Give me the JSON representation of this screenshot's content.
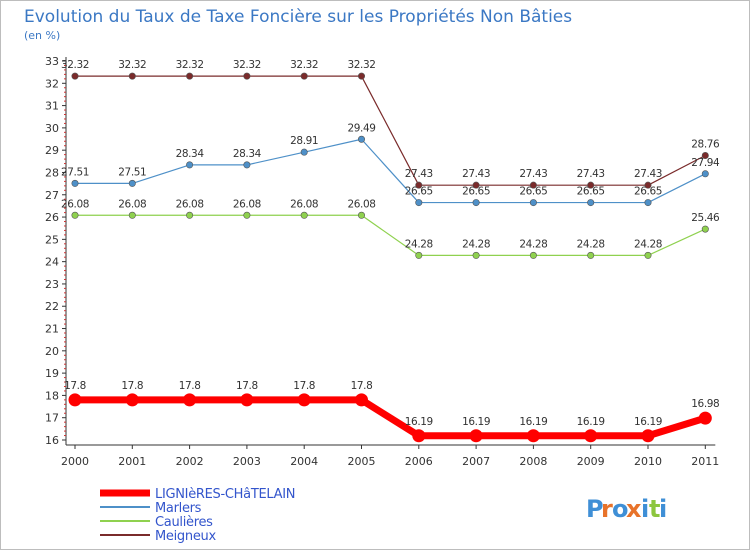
{
  "chart_data": {
    "type": "line",
    "title": "Evolution du Taux de Taxe Foncière sur les Propriétés Non Bâties",
    "subtitle": "(en %)",
    "xlabel": "",
    "ylabel": "",
    "categories": [
      "2000",
      "2001",
      "2002",
      "2003",
      "2004",
      "2005",
      "2006",
      "2007",
      "2008",
      "2009",
      "2010",
      "2011"
    ],
    "ylim": [
      16,
      33
    ],
    "yticks": [
      "16",
      "17",
      "18",
      "19",
      "20",
      "21",
      "22",
      "23",
      "24",
      "25",
      "26",
      "27",
      "28",
      "29",
      "30",
      "31",
      "32",
      "33"
    ],
    "grid": false,
    "legend_position": "bottom-left",
    "series": [
      {
        "name": "LIGNIèRES-CHâTELAIN",
        "color": "#ff0000",
        "emphasis": true,
        "values": [
          17.8,
          17.8,
          17.8,
          17.8,
          17.8,
          17.8,
          16.19,
          16.19,
          16.19,
          16.19,
          16.19,
          16.98
        ],
        "labels": [
          "17.8",
          "17.8",
          "17.8",
          "17.8",
          "17.8",
          "17.8",
          "16.19",
          "16.19",
          "16.19",
          "16.19",
          "16.19",
          "16.98"
        ]
      },
      {
        "name": "Marlers",
        "color": "#4e90c8",
        "emphasis": false,
        "values": [
          27.51,
          27.51,
          28.34,
          28.34,
          28.91,
          29.49,
          26.65,
          26.65,
          26.65,
          26.65,
          26.65,
          27.94
        ],
        "labels": [
          "27.51",
          "27.51",
          "28.34",
          "28.34",
          "28.91",
          "29.49",
          "26.65",
          "26.65",
          "26.65",
          "26.65",
          "26.65",
          "27.94"
        ]
      },
      {
        "name": "Caulières",
        "color": "#8fd14f",
        "emphasis": false,
        "values": [
          26.08,
          26.08,
          26.08,
          26.08,
          26.08,
          26.08,
          24.28,
          24.28,
          24.28,
          24.28,
          24.28,
          25.46
        ],
        "labels": [
          "26.08",
          "26.08",
          "26.08",
          "26.08",
          "26.08",
          "26.08",
          "24.28",
          "24.28",
          "24.28",
          "24.28",
          "24.28",
          "25.46"
        ]
      },
      {
        "name": "Meigneux",
        "color": "#7a2b2b",
        "emphasis": false,
        "values": [
          32.32,
          32.32,
          32.32,
          32.32,
          32.32,
          32.32,
          27.43,
          27.43,
          27.43,
          27.43,
          27.43,
          28.76
        ],
        "labels": [
          "32.32",
          "32.32",
          "32.32",
          "32.32",
          "32.32",
          "32.32",
          "27.43",
          "27.43",
          "27.43",
          "27.43",
          "27.43",
          "28.76"
        ]
      }
    ]
  },
  "colors": {
    "title": "#3b78c4",
    "axis": "#333333",
    "legend_text": "#3355cc",
    "background": "#ffffff"
  },
  "logo": {
    "text": "Proxiti",
    "letters": [
      "P",
      "r",
      "o",
      "x",
      "i",
      "t",
      "i"
    ],
    "letter_colors": [
      "#3f8fd6",
      "#e8732a",
      "#3f8fd6",
      "#e8732a",
      "#3f8fd6",
      "#8dc63f",
      "#3f8fd6"
    ]
  }
}
